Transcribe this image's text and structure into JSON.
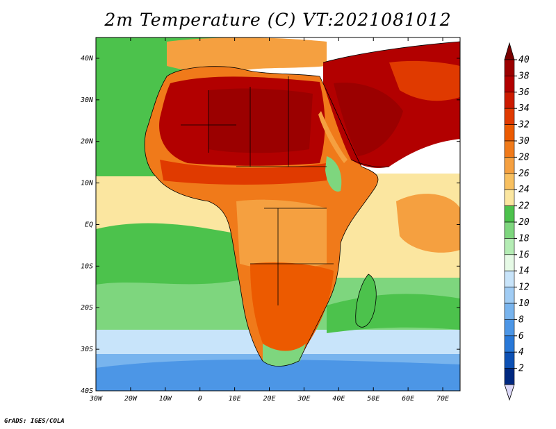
{
  "title": "2m Temperature (C) VT:2021081012",
  "credit": "GrADS: IGES/COLA",
  "map": {
    "lat_labels": [
      "40N",
      "30N",
      "20N",
      "10N",
      "EQ",
      "10S",
      "20S",
      "30S",
      "40S"
    ],
    "lon_labels": [
      "30W",
      "20W",
      "10W",
      "0",
      "10E",
      "20E",
      "30E",
      "40E",
      "50E",
      "60E",
      "70E"
    ],
    "extent": {
      "lon_min": -30,
      "lon_max": 75,
      "lat_min": -40,
      "lat_max": 45
    }
  },
  "colorbar": {
    "labels": [
      "40",
      "38",
      "36",
      "34",
      "32",
      "30",
      "28",
      "26",
      "24",
      "22",
      "20",
      "18",
      "16",
      "14",
      "12",
      "10",
      "8",
      "6",
      "4",
      "2"
    ],
    "colors": [
      "#9b0000",
      "#b20000",
      "#cc1a00",
      "#e03a00",
      "#ec5a00",
      "#f07a1a",
      "#f5a040",
      "#f8c060",
      "#fbe6a0",
      "#4cc24c",
      "#7ed67e",
      "#b4ecb4",
      "#e6fae6",
      "#c8e4fa",
      "#a0ccf4",
      "#78b4ee",
      "#4c96e6",
      "#2878d8",
      "#0c50b4",
      "#002880"
    ],
    "top_arrow_color": "#7a0000",
    "bottom_arrow_color": "#dcd8f8"
  }
}
